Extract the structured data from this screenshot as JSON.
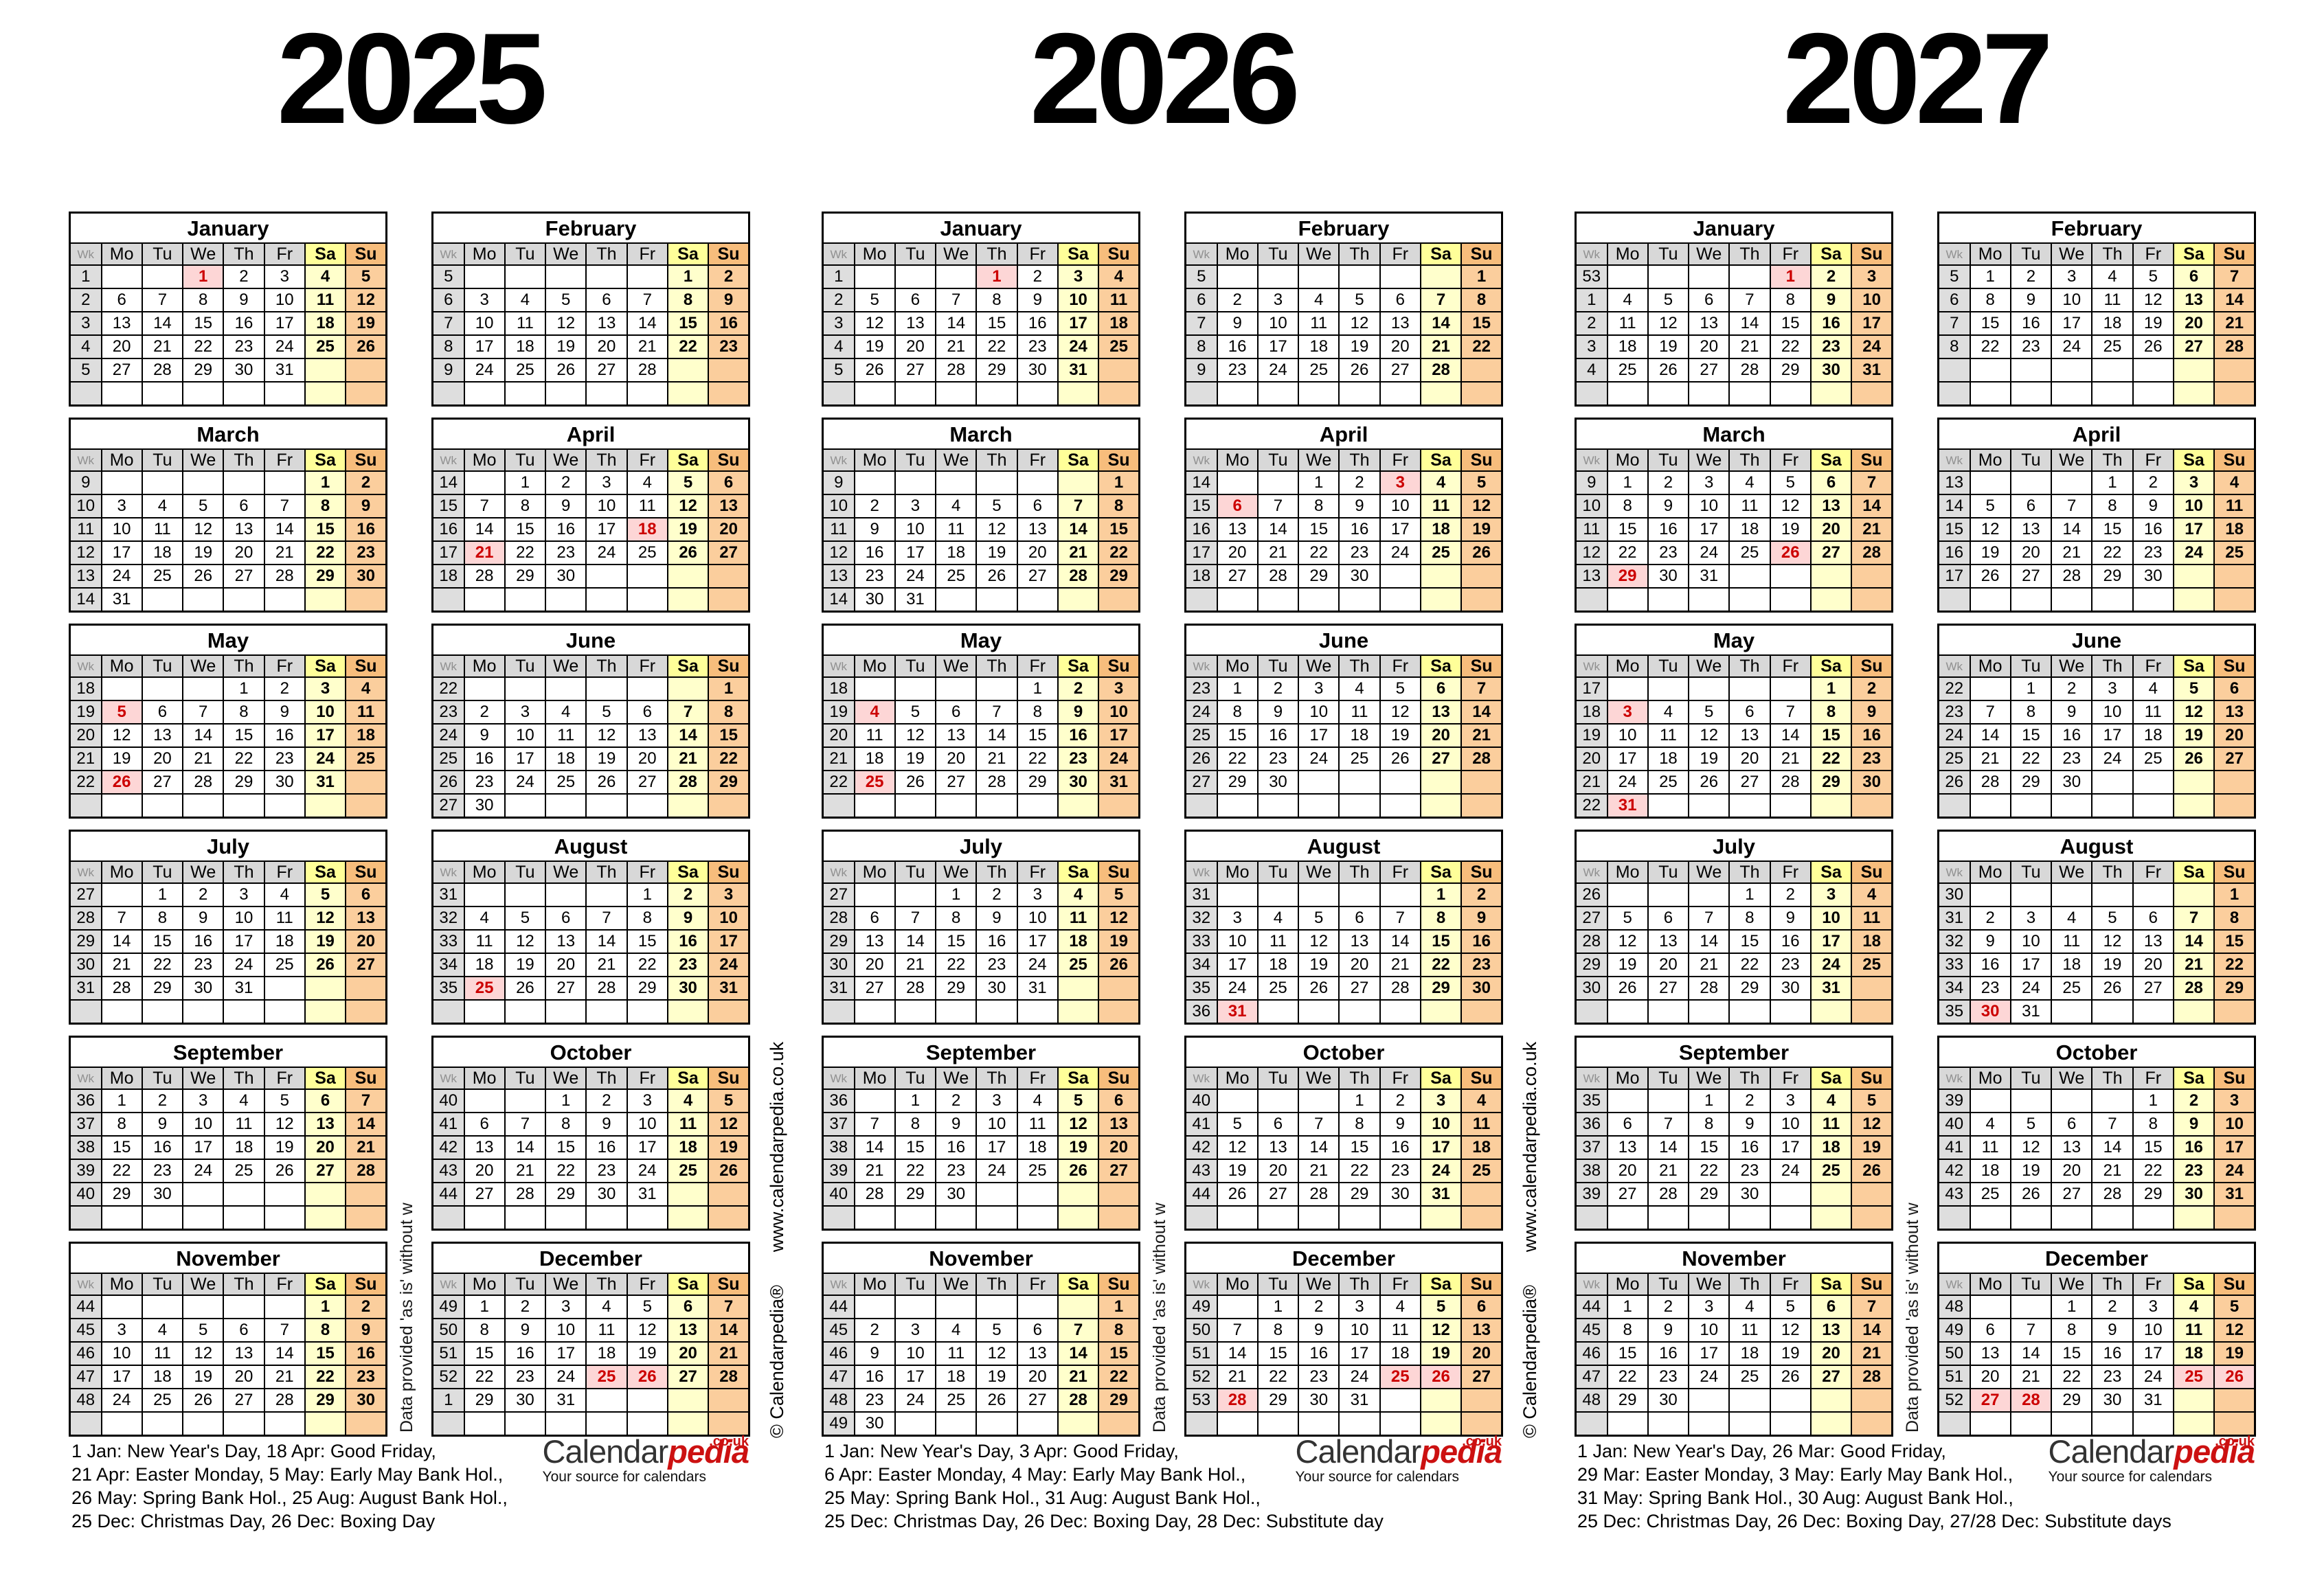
{
  "weekday_headers": [
    "Wk",
    "Mo",
    "Tu",
    "We",
    "Th",
    "Fr",
    "Sa",
    "Su"
  ],
  "month_names": [
    "January",
    "February",
    "March",
    "April",
    "May",
    "June",
    "July",
    "August",
    "September",
    "October",
    "November",
    "December"
  ],
  "years": [
    {
      "year": 2025,
      "holidays": {
        "1": [
          1
        ],
        "4": [
          18,
          21
        ],
        "5": [
          5,
          26
        ],
        "8": [
          25
        ],
        "12": [
          25,
          26
        ]
      },
      "footer_lines": [
        "1 Jan: New Year's Day, 18 Apr: Good Friday,",
        "21 Apr: Easter Monday, 5 May: Early May Bank Hol.,",
        "26 May: Spring Bank Hol., 25 Aug: August Bank Hol.,",
        "25 Dec: Christmas Day, 26 Dec: Boxing Day"
      ]
    },
    {
      "year": 2026,
      "holidays": {
        "1": [
          1
        ],
        "4": [
          3,
          6
        ],
        "5": [
          4,
          25
        ],
        "8": [
          31
        ],
        "12": [
          25,
          26,
          28
        ]
      },
      "footer_lines": [
        "1 Jan: New Year's Day, 3 Apr: Good Friday,",
        "6 Apr: Easter Monday, 4 May: Early May Bank Hol.,",
        "25 May: Spring Bank Hol., 31 Aug: August Bank Hol.,",
        "25 Dec: Christmas Day, 26 Dec: Boxing Day, 28 Dec: Substitute day"
      ]
    },
    {
      "year": 2027,
      "holidays": {
        "1": [
          1
        ],
        "3": [
          26,
          29
        ],
        "5": [
          3,
          31
        ],
        "8": [
          30
        ],
        "12": [
          25,
          26,
          27,
          28
        ]
      },
      "footer_lines": [
        "1 Jan: New Year's Day, 26 Mar: Good Friday,",
        "29 Mar: Easter Monday, 3 May: Early May Bank Hol.,",
        "31 May: Spring Bank Hol., 30 Aug: August Bank Hol.,",
        "25 Dec: Christmas Day, 26 Dec: Boxing Day, 27/28 Dec: Substitute days"
      ]
    }
  ],
  "branding": {
    "logo_main": "Calendar",
    "logo_accent": "pedia",
    "logo_sup": ".co.uk",
    "tagline": "Your source for calendars",
    "vertical_copyright": "© Calendarpedia®",
    "vertical_url": "www.calendarpedia.co.uk",
    "vertical_disclaimer": "Data provided 'as is' without w"
  },
  "colors": {
    "saturday_header": "#ffff99",
    "sunday_header": "#f7bd7c",
    "saturday_cell": "#ffffcc",
    "sunday_cell": "#fbce9d",
    "holiday_bg": "#fdd6d6",
    "holiday_text": "#cc0000",
    "weekday_bg": "#d8d8d8",
    "week_bg": "#dedede",
    "border": "#000000"
  }
}
